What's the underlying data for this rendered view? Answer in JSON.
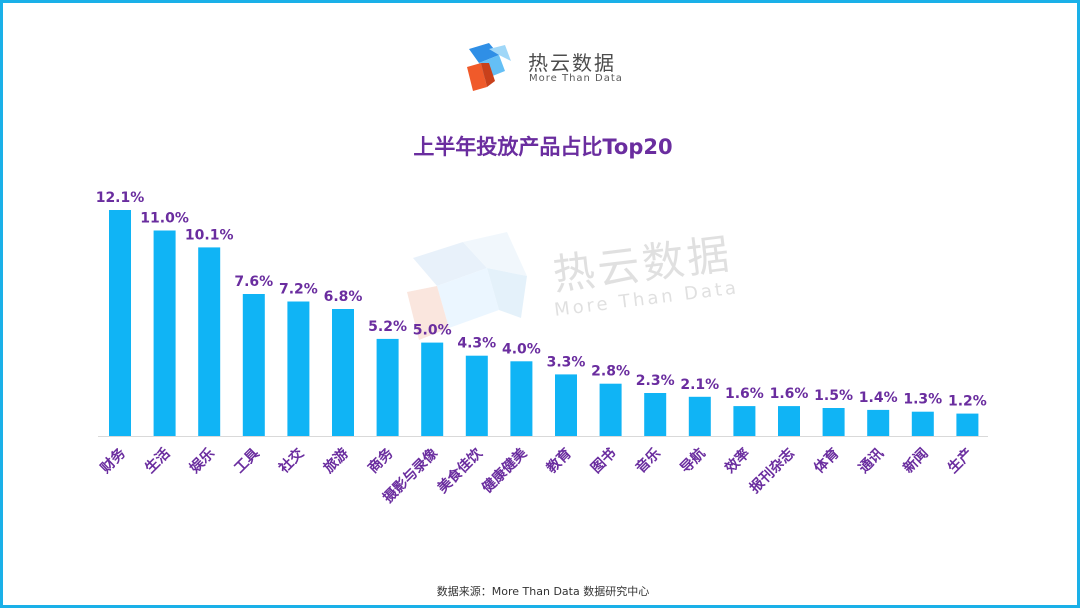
{
  "logo": {
    "name_cn": "热云数据",
    "name_en": "More Than Data"
  },
  "watermark": {
    "name_cn": "热云数据",
    "name_en": "More Than Data"
  },
  "colors": {
    "bar": "#10b4f5",
    "label": "#6a2d9f",
    "title": "#6a2d9f",
    "border": "#1ab0e8",
    "axis": "#d9d9d9"
  },
  "chart_data": {
    "type": "bar",
    "title": "上半年投放产品占比Top20",
    "xlabel": "",
    "ylabel": "",
    "unit": "%",
    "ylim": [
      0,
      12.1
    ],
    "grid": false,
    "categories": [
      "财务",
      "生活",
      "娱乐",
      "工具",
      "社交",
      "旅游",
      "商务",
      "摄影与录像",
      "美食佳饮",
      "健康健美",
      "教育",
      "图书",
      "音乐",
      "导航",
      "效率",
      "报刊杂志",
      "体育",
      "通讯",
      "新闻",
      "生产"
    ],
    "values": [
      12.1,
      11.0,
      10.1,
      7.6,
      7.2,
      6.8,
      5.2,
      5.0,
      4.3,
      4.0,
      3.3,
      2.8,
      2.3,
      2.1,
      1.6,
      1.6,
      1.5,
      1.4,
      1.3,
      1.2
    ],
    "value_labels": [
      "12.1%",
      "11.0%",
      "10.1%",
      "7.6%",
      "7.2%",
      "6.8%",
      "5.2%",
      "5.0%",
      "4.3%",
      "4.0%",
      "3.3%",
      "2.8%",
      "2.3%",
      "2.1%",
      "1.6%",
      "1.6%",
      "1.5%",
      "1.4%",
      "1.3%",
      "1.2%"
    ]
  },
  "source": "数据来源：More Than Data 数据研究中心"
}
